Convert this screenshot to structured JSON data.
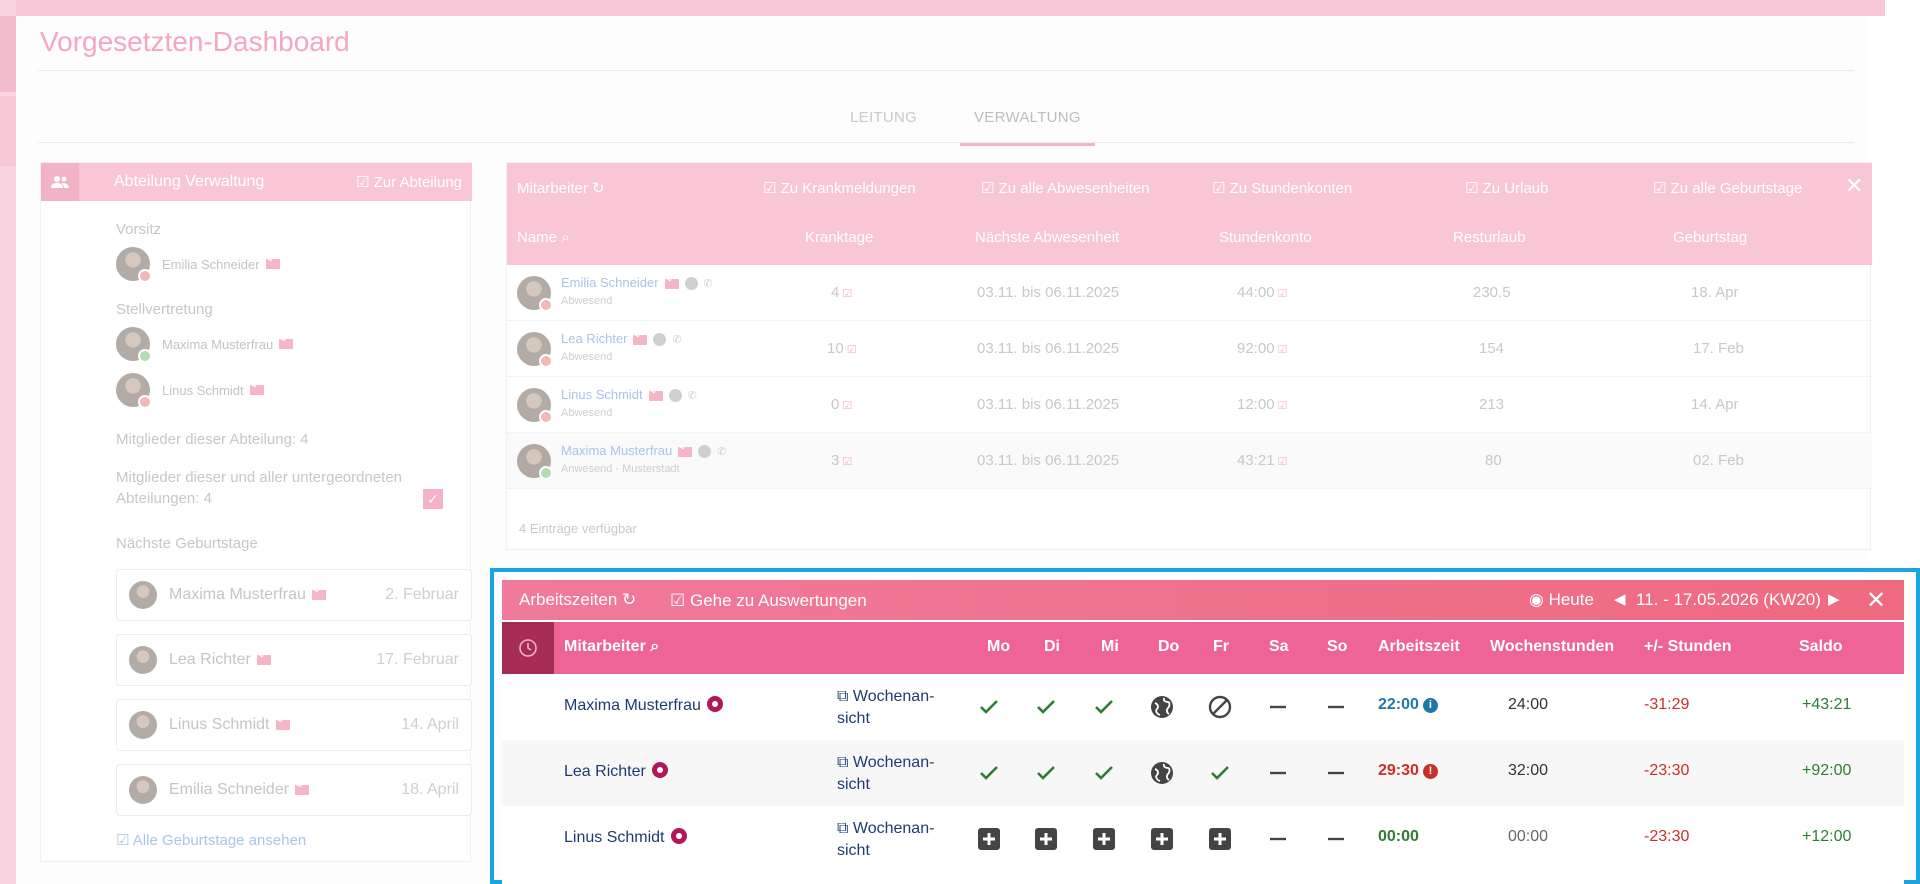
{
  "page": {
    "title": "Vorgesetzten-Dashboard"
  },
  "tabs": [
    {
      "label": "LEITUNG"
    },
    {
      "label": "VERWALTUNG"
    }
  ],
  "department": {
    "title": "Abteilung Verwaltung",
    "link": "Zur Abteilung",
    "chair_label": "Vorsitz",
    "chair": "Emilia Schneider",
    "deputy_label": "Stellvertretung",
    "deputies": [
      "Maxima Musterfrau",
      "Linus Schmidt"
    ],
    "members": "Mitglieder dieser Abteilung: 4",
    "members_all": "Mitglieder dieser und aller untergeordneten Abteilungen: 4",
    "birthdays_label": "Nächste Geburtstage",
    "birthdays": [
      {
        "name": "Maxima Musterfrau",
        "date": "2. Februar"
      },
      {
        "name": "Lea Richter",
        "date": "17. Februar"
      },
      {
        "name": "Linus Schmidt",
        "date": "14. April"
      },
      {
        "name": "Emilia Schneider",
        "date": "18. April"
      }
    ],
    "all_birthdays": "Alle Geburtstage ansehen"
  },
  "employees": {
    "header_links": {
      "title": "Mitarbeiter",
      "sick": "Zu Krankmeldungen",
      "absences": "Zu alle Abwesenheiten",
      "hours": "Zu Stundenkonten",
      "vacation": "Zu Urlaub",
      "birthdays": "Zu alle Geburtstage"
    },
    "columns": {
      "name": "Name",
      "sick_days": "Kranktage",
      "next_absence": "Nächste Abwesenheit",
      "hour_account": "Stundenkonto",
      "vacation_left": "Resturlaub",
      "birthday": "Geburtstag"
    },
    "rows": [
      {
        "name": "Emilia Schneider",
        "status": "Abwesend",
        "sick": "4",
        "absence": "03.11. bis 06.11.2025",
        "hours": "44:00",
        "vacation": "230.5",
        "birthday": "18. Apr"
      },
      {
        "name": "Lea Richter",
        "status": "Abwesend",
        "sick": "10",
        "absence": "03.11. bis 06.11.2025",
        "hours": "92:00",
        "vacation": "154",
        "birthday": "17. Feb"
      },
      {
        "name": "Linus Schmidt",
        "status": "Abwesend",
        "sick": "0",
        "absence": "03.11. bis 06.11.2025",
        "hours": "12:00",
        "vacation": "213",
        "birthday": "14. Apr"
      },
      {
        "name": "Maxima Musterfrau",
        "status": "Anwesend - Musterstadt",
        "sick": "3",
        "absence": "03.11. bis 06.11.2025",
        "hours": "43:21",
        "vacation": "80",
        "birthday": "02. Feb"
      }
    ],
    "footer": "4 Einträge verfügbar"
  },
  "worktime": {
    "title": "Arbeitszeiten",
    "eval_link": "Gehe zu Auswertungen",
    "today": "Heute",
    "week": "11. - 17.05.2026 (KW20)",
    "columns": {
      "employee": "Mitarbeiter",
      "days": [
        "Mo",
        "Di",
        "Mi",
        "Do",
        "Fr",
        "Sa",
        "So"
      ],
      "work": "Arbeitszeit",
      "weekly": "Wochenstunden",
      "diff": "+/- Stunden",
      "balance": "Saldo"
    },
    "week_link_1": "Wochenan-",
    "week_link_2": "sicht",
    "colors": {
      "blue": "#1f78a8",
      "red": "#c8312a",
      "green": "#2e7d32"
    },
    "rows": [
      {
        "name": "Maxima Musterfrau",
        "days": [
          "check",
          "check",
          "check",
          "globe",
          "ban",
          "dash",
          "dash"
        ],
        "work": "22:00",
        "work_color": "blue",
        "weekly": "24:00",
        "diff": "-31:29",
        "balance": "+43:21"
      },
      {
        "name": "Lea Richter",
        "days": [
          "check",
          "check",
          "check",
          "globe",
          "check",
          "dash",
          "dash"
        ],
        "work": "29:30",
        "work_color": "red",
        "weekly": "32:00",
        "diff": "-23:30",
        "balance": "+92:00"
      },
      {
        "name": "Linus Schmidt",
        "days": [
          "plus",
          "plus",
          "plus",
          "plus",
          "plus",
          "dash",
          "dash"
        ],
        "work": "00:00",
        "work_color": "green",
        "weekly": "00:00",
        "diff": "-23:30",
        "balance": "+12:00"
      }
    ]
  }
}
